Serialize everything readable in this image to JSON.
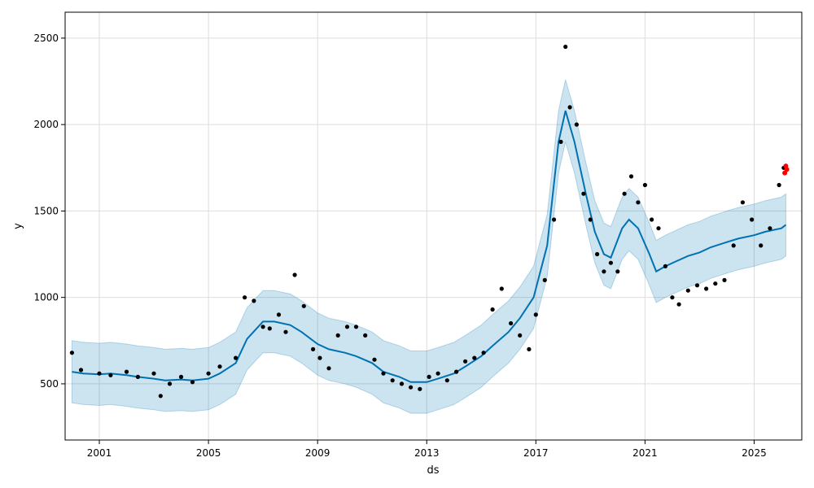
{
  "chart_data": {
    "type": "line",
    "title": "",
    "xlabel": "ds",
    "ylabel": "y",
    "xlim": [
      "1999-10-01",
      "2026-10-01"
    ],
    "ylim": [
      175,
      2650
    ],
    "grid": true,
    "x_ticks": [
      "2001",
      "2005",
      "2009",
      "2013",
      "2017",
      "2021",
      "2025"
    ],
    "y_ticks": [
      500,
      1000,
      1500,
      2000,
      2500
    ],
    "colors": {
      "forecast_line": "#0072B2",
      "uncertainty_band": "#0072B2",
      "observed_points": "#000000",
      "highlight_points": "#ff0000",
      "grid": "#dddddd"
    },
    "series": [
      {
        "kind": "forecast",
        "x": [
          "2000-01-01",
          "2000-06-01",
          "2001-01-01",
          "2001-06-01",
          "2002-01-01",
          "2002-06-01",
          "2003-01-01",
          "2003-06-01",
          "2004-01-01",
          "2004-06-01",
          "2005-01-01",
          "2005-06-01",
          "2006-01-01",
          "2006-06-01",
          "2007-01-01",
          "2007-06-01",
          "2008-01-01",
          "2008-06-01",
          "2009-01-01",
          "2009-06-01",
          "2010-01-01",
          "2010-06-01",
          "2011-01-01",
          "2011-06-01",
          "2012-01-01",
          "2012-06-01",
          "2013-01-01",
          "2013-06-01",
          "2014-01-01",
          "2014-06-01",
          "2015-01-01",
          "2015-06-01",
          "2016-01-01",
          "2016-06-01",
          "2016-12-01",
          "2017-06-01",
          "2017-11-01",
          "2018-02-01",
          "2018-06-01",
          "2018-11-01",
          "2019-03-01",
          "2019-07-01",
          "2019-10-01",
          "2020-03-01",
          "2020-06-01",
          "2020-10-01",
          "2021-03-01",
          "2021-06-01",
          "2021-10-01",
          "2022-03-01",
          "2022-08-01",
          "2023-01-01",
          "2023-06-01",
          "2024-01-01",
          "2024-06-01",
          "2025-01-01",
          "2025-06-01",
          "2026-01-01",
          "2026-03-01"
        ],
        "y": [
          570,
          560,
          555,
          560,
          550,
          540,
          530,
          520,
          525,
          520,
          530,
          560,
          620,
          760,
          860,
          860,
          840,
          800,
          730,
          700,
          680,
          660,
          620,
          570,
          540,
          510,
          510,
          530,
          560,
          600,
          660,
          720,
          800,
          880,
          1000,
          1300,
          1900,
          2080,
          1900,
          1600,
          1380,
          1250,
          1230,
          1400,
          1450,
          1400,
          1250,
          1150,
          1180,
          1210,
          1240,
          1260,
          1290,
          1320,
          1340,
          1360,
          1380,
          1400,
          1420
        ],
        "lower": [
          390,
          380,
          375,
          380,
          370,
          360,
          350,
          340,
          345,
          340,
          350,
          380,
          440,
          580,
          680,
          680,
          660,
          620,
          550,
          520,
          500,
          480,
          440,
          390,
          360,
          330,
          330,
          350,
          380,
          420,
          480,
          540,
          620,
          700,
          820,
          1120,
          1720,
          1900,
          1720,
          1420,
          1200,
          1070,
          1050,
          1220,
          1270,
          1220,
          1070,
          970,
          1000,
          1030,
          1060,
          1080,
          1110,
          1140,
          1160,
          1180,
          1200,
          1220,
          1240
        ],
        "upper": [
          750,
          740,
          735,
          740,
          730,
          720,
          710,
          700,
          705,
          700,
          710,
          740,
          800,
          940,
          1040,
          1040,
          1020,
          980,
          910,
          880,
          860,
          840,
          800,
          750,
          720,
          690,
          690,
          710,
          740,
          780,
          840,
          900,
          980,
          1060,
          1180,
          1480,
          2080,
          2260,
          2080,
          1780,
          1560,
          1430,
          1410,
          1580,
          1630,
          1580,
          1430,
          1330,
          1360,
          1390,
          1420,
          1440,
          1470,
          1500,
          1520,
          1540,
          1560,
          1580,
          1600
        ]
      },
      {
        "kind": "observed",
        "x": [
          "2000-01-01",
          "2000-05-01",
          "2001-01-01",
          "2001-06-01",
          "2002-01-01",
          "2002-06-01",
          "2003-01-01",
          "2003-04-01",
          "2003-08-01",
          "2004-01-01",
          "2004-06-01",
          "2005-01-01",
          "2005-06-01",
          "2006-01-01",
          "2006-05-01",
          "2006-09-01",
          "2007-01-01",
          "2007-04-01",
          "2007-08-01",
          "2007-11-01",
          "2008-03-01",
          "2008-07-01",
          "2008-11-01",
          "2009-02-01",
          "2009-06-01",
          "2009-10-01",
          "2010-02-01",
          "2010-06-01",
          "2010-10-01",
          "2011-02-01",
          "2011-06-01",
          "2011-10-01",
          "2012-02-01",
          "2012-06-01",
          "2012-10-01",
          "2013-02-01",
          "2013-06-01",
          "2013-10-01",
          "2014-02-01",
          "2014-06-01",
          "2014-10-01",
          "2015-02-01",
          "2015-06-01",
          "2015-10-01",
          "2016-02-01",
          "2016-06-01",
          "2016-10-01",
          "2017-01-01",
          "2017-05-01",
          "2017-09-01",
          "2017-12-01",
          "2018-02-01",
          "2018-04-01",
          "2018-07-01",
          "2018-10-01",
          "2019-01-01",
          "2019-04-01",
          "2019-07-01",
          "2019-10-01",
          "2020-01-01",
          "2020-04-01",
          "2020-07-01",
          "2020-10-01",
          "2021-01-01",
          "2021-04-01",
          "2021-07-01",
          "2021-10-01",
          "2022-01-01",
          "2022-04-01",
          "2022-08-01",
          "2022-12-01",
          "2023-04-01",
          "2023-08-01",
          "2023-12-01",
          "2024-04-01",
          "2024-08-01",
          "2024-12-01",
          "2025-04-01",
          "2025-08-01",
          "2025-12-01",
          "2026-02-01"
        ],
        "y": [
          680,
          580,
          560,
          550,
          570,
          540,
          560,
          430,
          500,
          540,
          510,
          560,
          600,
          650,
          1000,
          980,
          830,
          820,
          900,
          800,
          1130,
          950,
          700,
          650,
          590,
          780,
          830,
          830,
          780,
          640,
          560,
          520,
          500,
          480,
          470,
          540,
          560,
          520,
          570,
          630,
          650,
          680,
          930,
          1050,
          850,
          780,
          700,
          900,
          1100,
          1450,
          1900,
          2450,
          2100,
          2000,
          1600,
          1450,
          1250,
          1150,
          1200,
          1150,
          1600,
          1700,
          1550,
          1650,
          1450,
          1400,
          1180,
          1000,
          960,
          1040,
          1070,
          1050,
          1080,
          1100,
          1300,
          1550,
          1450,
          1300,
          1400,
          1650,
          1750
        ]
      },
      {
        "kind": "observed_recent",
        "x": [
          "2026-02-15",
          "2026-03-01",
          "2026-03-15"
        ],
        "y": [
          1720,
          1760,
          1740
        ]
      }
    ]
  }
}
